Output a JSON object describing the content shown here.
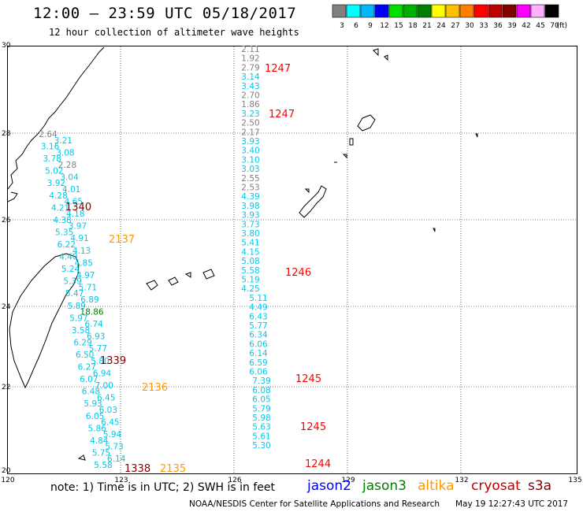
{
  "header": {
    "title": "12:00 — 23:59 UTC 05/18/2017",
    "subtitle": "12 hour collection of altimeter wave heights"
  },
  "legend": {
    "colors": [
      "#808080",
      "#00ffff",
      "#00b8ff",
      "#0000ff",
      "#00e000",
      "#00b000",
      "#008000",
      "#ffff00",
      "#ffc000",
      "#ff8000",
      "#ff0000",
      "#c00000",
      "#800000",
      "#ff00ff",
      "#ffb0ff",
      "#000000"
    ],
    "labels": [
      "3",
      "6",
      "9",
      "12",
      "15",
      "18",
      "21",
      "24",
      "27",
      "30",
      "33",
      "36",
      "39",
      "42",
      "45",
      "70"
    ],
    "unit": "(ft)"
  },
  "axes": {
    "x_ticks": [
      "120",
      "123",
      "126",
      "129",
      "132",
      "135"
    ],
    "y_ticks": [
      "30",
      "28",
      "26",
      "24",
      "22",
      "20"
    ]
  },
  "times": [
    {
      "label": "1247",
      "color": "#ff0000"
    },
    {
      "label": "1247",
      "color": "#ff0000"
    },
    {
      "label": "1340",
      "color": "#800000"
    },
    {
      "label": "2137",
      "color": "#ff9900"
    },
    {
      "label": "1246",
      "color": "#ff0000"
    },
    {
      "label": "1339",
      "color": "#800000"
    },
    {
      "label": "1245",
      "color": "#ff0000"
    },
    {
      "label": "2136",
      "color": "#ff9900"
    },
    {
      "label": "1245",
      "color": "#ff0000"
    },
    {
      "label": "1244",
      "color": "#ff0000"
    },
    {
      "label": "1338",
      "color": "#800000"
    },
    {
      "label": "2135",
      "color": "#ff9900"
    }
  ],
  "track_east": {
    "values": [
      "2.11",
      "1.92",
      "2.79",
      "3.14",
      "3.43",
      "2.70",
      "1.86",
      "3.23",
      "2.50",
      "2.17",
      "3.93",
      "3.40",
      "3.10",
      "3.03",
      "2.55",
      "2.53",
      "4.39",
      "3.98",
      "3.93",
      "3.73",
      "3.80",
      "5.41",
      "4.15",
      "5.08",
      "5.58",
      "5.19",
      "4.25",
      "5.11",
      "4.49",
      "6.43",
      "5.77",
      "6.34",
      "6.06",
      "6.14",
      "6.59",
      "6.06",
      "7.39",
      "6.08",
      "6.05",
      "5.79",
      "5.98",
      "5.63",
      "5.61",
      "5.30"
    ],
    "colors": [
      "#808080",
      "#808080",
      "#808080",
      "#00c8e8",
      "#00c8e8",
      "#808080",
      "#808080",
      "#00c8e8",
      "#808080",
      "#808080",
      "#00c8e8",
      "#00c8e8",
      "#00c8e8",
      "#00c8e8",
      "#808080",
      "#808080",
      "#00c8e8",
      "#00c8e8",
      "#00c8e8",
      "#00c8e8",
      "#00c8e8",
      "#00c8e8",
      "#00c8e8",
      "#00c8e8",
      "#00c8e8",
      "#00c8e8",
      "#00c8e8",
      "#00c8e8",
      "#00c8e8",
      "#00c8e8",
      "#00c8e8",
      "#00c8e8",
      "#00c8e8",
      "#00c8e8",
      "#00c8e8",
      "#00c8e8",
      "#00c8e8",
      "#00c8e8",
      "#00c8e8",
      "#00c8e8",
      "#00c8e8",
      "#00c8e8",
      "#00c8e8",
      "#00c8e8"
    ]
  },
  "track_west": {
    "values": [
      "2.64",
      "3.21",
      "3.16",
      "3.08",
      "3.78",
      "2.28",
      "5.02",
      "3.04",
      "3.92",
      "4.01",
      "4.28",
      "4.65",
      "4.21",
      "4.18",
      "4.38",
      "3.97",
      "5.35",
      "4.91",
      "6.22",
      "4.13",
      "4.40",
      "4.85",
      "5.24",
      "4.97",
      "5.39",
      "5.71",
      "5.47",
      "6.89",
      "5.89",
      "18.86",
      "5.97",
      "6.74",
      "3.58",
      "6.93",
      "6.29",
      "5.77",
      "6.50",
      "5.80",
      "6.27",
      "6.94",
      "6.07",
      "7.00",
      "6.48",
      "6.45",
      "5.93",
      "6.03",
      "6.05",
      "6.45",
      "5.86",
      "5.94",
      "4.84",
      "5.73",
      "5.75",
      "6.14",
      "5.58"
    ],
    "colors": [
      "#808080",
      "#00c8e8",
      "#00c8e8",
      "#00c8e8",
      "#00c8e8",
      "#808080",
      "#00c8e8",
      "#00c8e8",
      "#00c8e8",
      "#00c8e8",
      "#00c8e8",
      "#00c8e8",
      "#00c8e8",
      "#00c8e8",
      "#00c8e8",
      "#00c8e8",
      "#00c8e8",
      "#00c8e8",
      "#00c8e8",
      "#00c8e8",
      "#00c8e8",
      "#00c8e8",
      "#00c8e8",
      "#00c8e8",
      "#00c8e8",
      "#00c8e8",
      "#00c8e8",
      "#00c8e8",
      "#00c8e8",
      "#008000",
      "#00c8e8",
      "#00c8e8",
      "#00c8e8",
      "#00c8e8",
      "#00c8e8",
      "#00c8e8",
      "#00c8e8",
      "#00c8e8",
      "#00c8e8",
      "#00c8e8",
      "#00c8e8",
      "#00c8e8",
      "#00c8e8",
      "#00c8e8",
      "#00c8e8",
      "#00c8e8",
      "#00c8e8",
      "#00c8e8",
      "#00c8e8",
      "#00c8e8",
      "#00c8e8",
      "#00c8e8",
      "#00c8e8",
      "#00c8e8",
      "#00c8e8"
    ]
  },
  "footer": {
    "note": "note: 1) Time is in UTC; 2) SWH is in feet",
    "satellites": [
      {
        "name": "jason2",
        "color": "#0000ff"
      },
      {
        "name": "jason3",
        "color": "#008000"
      },
      {
        "name": "altika",
        "color": "#ff9900"
      },
      {
        "name": "cryosat",
        "color": "#c00000"
      },
      {
        "name": "s3a",
        "color": "#800000"
      }
    ],
    "credit": "NOAA/NESDIS Center for Satellite Applications and Research",
    "timestamp": "May 19 12:27:43 UTC 2017"
  }
}
